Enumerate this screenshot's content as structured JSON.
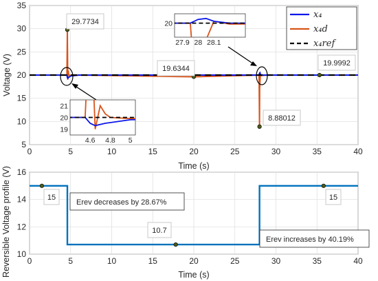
{
  "chart_data": [
    {
      "type": "line",
      "xlabel": "Time (s)",
      "ylabel": "Voltage (V)",
      "xlim": [
        0,
        40
      ],
      "ylim": [
        5,
        35
      ],
      "xticks": [
        "0",
        "5",
        "10",
        "15",
        "20",
        "25",
        "30",
        "35",
        "40"
      ],
      "yticks": [
        "5",
        "10",
        "15",
        "20",
        "25",
        "30",
        "35"
      ],
      "grid": true,
      "legend_position": "top-right",
      "series": [
        {
          "name": "x₄",
          "color": "#0b16e8",
          "x": [
            0,
            4.55,
            4.6,
            4.65,
            4.75,
            5.0,
            6.0,
            27.95,
            28.0,
            28.05,
            28.1,
            28.2,
            40
          ],
          "y": [
            20,
            20,
            19.5,
            19.3,
            19.5,
            19.8,
            20,
            20,
            20.4,
            20.5,
            20.2,
            20,
            20
          ]
        },
        {
          "name": "x₄d",
          "color": "#d95319",
          "x": [
            0,
            4.55,
            4.6,
            4.65,
            4.7,
            4.75,
            4.8,
            5.0,
            6.0,
            20.0,
            27.95,
            28.0,
            28.02,
            28.1,
            28.2,
            29.0,
            35.3,
            40
          ],
          "y": [
            20,
            20,
            29.7734,
            19.0,
            21.0,
            20.3,
            20.0,
            19.9,
            20,
            19.6344,
            20,
            8.88012,
            17.0,
            20.2,
            19.9,
            20,
            19.9992,
            20
          ]
        },
        {
          "name": "x₄ref",
          "color": "#000000",
          "x": [
            0,
            40
          ],
          "y": [
            20,
            20
          ]
        }
      ],
      "annotations": [
        {
          "x": 4.6,
          "y": 29.7734,
          "label": "29.7734"
        },
        {
          "x": 20.0,
          "y": 19.6344,
          "label": "19.6344"
        },
        {
          "x": 28.0,
          "y": 8.88012,
          "label": "8.88012"
        },
        {
          "x": 35.3,
          "y": 19.9992,
          "label": "19.9992"
        }
      ],
      "insets": [
        {
          "xlim": [
            4.4,
            5.05
          ],
          "ylim": [
            18.5,
            21.5
          ],
          "xticks": [
            "4.6",
            "4.8",
            "5"
          ],
          "yticks": [
            "19",
            "20",
            "21"
          ]
        },
        {
          "xlim": [
            27.85,
            28.3
          ],
          "ylim": [
            18.5,
            21
          ],
          "xticks": [
            "27.9",
            "28",
            "28.1"
          ],
          "yticks": [
            "20"
          ]
        }
      ]
    },
    {
      "type": "line",
      "xlabel": "Time (s)",
      "ylabel": "Reversible Voltage profile (V)",
      "xlim": [
        0,
        40
      ],
      "ylim": [
        10,
        16
      ],
      "xticks": [
        "0",
        "5",
        "10",
        "15",
        "20",
        "25",
        "30",
        "35",
        "40"
      ],
      "yticks": [
        "10",
        "12",
        "14",
        "16"
      ],
      "grid": true,
      "series": [
        {
          "color": "#0072bd",
          "x": [
            0,
            4.6,
            4.6,
            28.0,
            28.0,
            40
          ],
          "y": [
            15,
            15,
            10.7,
            10.7,
            15,
            15
          ]
        }
      ],
      "annotations": [
        {
          "x": 1.5,
          "y": 15,
          "label": "15"
        },
        {
          "x": 17.8,
          "y": 10.7,
          "label": "10.7"
        },
        {
          "x": 35.8,
          "y": 15,
          "label": "15"
        }
      ],
      "notes": [
        "Erev decreases by 28.67%",
        "Erev increases by 40.19%"
      ]
    }
  ]
}
